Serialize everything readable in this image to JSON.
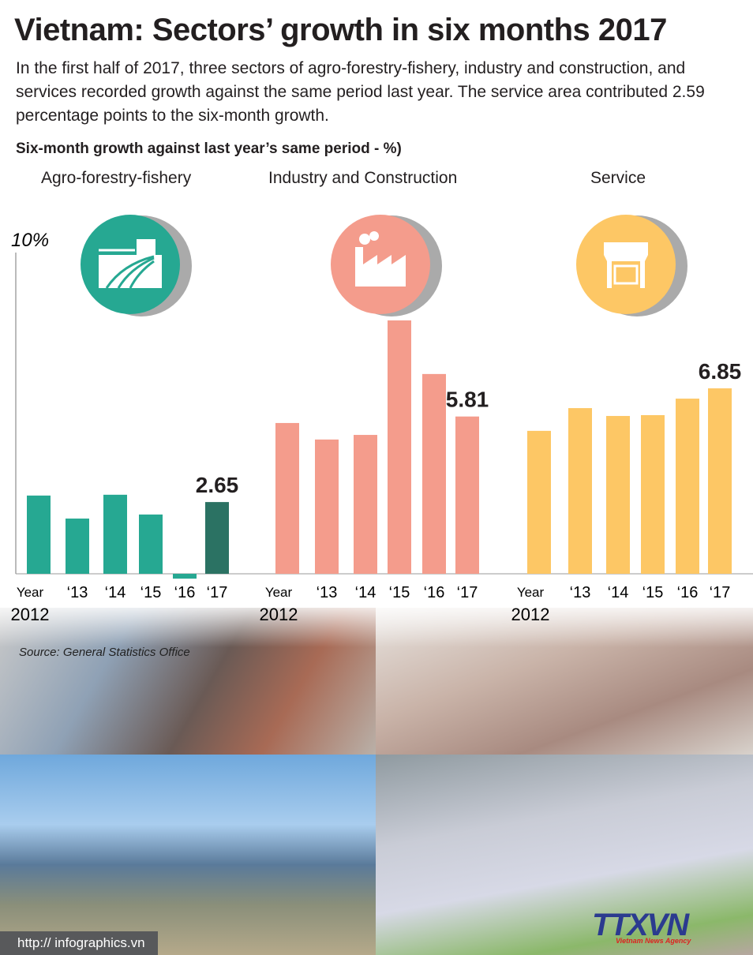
{
  "title": "Vietnam: Sectors’ growth in six months 2017",
  "description": "In the first half of 2017, three sectors of agro-forestry-fishery, industry and construction, and services recorded growth against the same period last year. The service area contributed 2.59 percentage points to the six-month growth.",
  "source": "Source: General Statistics Office",
  "url": "http:// infographics.vn",
  "logo": {
    "name": "TTXVN",
    "sub": "Vietnam News Agency"
  },
  "chart_data": {
    "type": "bar",
    "title": "Six-month growth against last year’s same period - %)",
    "ylabel": "10%",
    "ylim": [
      -0.5,
      10
    ],
    "categories": [
      "Year 2012",
      "‘13",
      "‘14",
      "‘15",
      "‘16",
      "‘17"
    ],
    "category_parts": [
      [
        "Year",
        "2012"
      ],
      [
        "‘13"
      ],
      [
        "‘14"
      ],
      [
        "‘15"
      ],
      [
        "‘16"
      ],
      [
        "‘17"
      ]
    ],
    "series": [
      {
        "name": "Agro-forestry-fishery",
        "icon": "farm-icon",
        "color": "#26a892",
        "highlight": "#2b7263",
        "circle": "#26a892",
        "values": [
          2.89,
          2.04,
          2.92,
          2.19,
          -0.18,
          2.65
        ],
        "label": "2.65"
      },
      {
        "name": "Industry and Construction",
        "icon": "factory-icon",
        "color": "#f49c8c",
        "highlight": "#f49c8c",
        "circle": "#f49c8c",
        "values": [
          5.57,
          4.96,
          5.13,
          9.36,
          7.38,
          5.81
        ],
        "label": "5.81"
      },
      {
        "name": "Service",
        "icon": "shop-icon",
        "color": "#fdc765",
        "highlight": "#fdc765",
        "circle": "#fdc765",
        "values": [
          5.28,
          6.12,
          5.83,
          5.86,
          6.47,
          6.85
        ],
        "label": "6.85"
      }
    ]
  }
}
